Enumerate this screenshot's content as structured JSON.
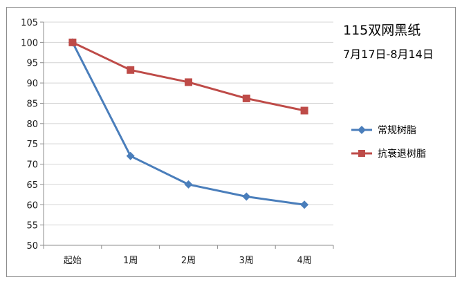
{
  "chart_data": {
    "type": "line",
    "title": "115双网黑纸",
    "subtitle": "7月17日-8月14日",
    "categories": [
      "起始",
      "1周",
      "2周",
      "3周",
      "4周"
    ],
    "ylim": [
      50,
      105
    ],
    "yticks": [
      50,
      55,
      60,
      65,
      70,
      75,
      80,
      85,
      90,
      95,
      100,
      105
    ],
    "grid": true,
    "legend_position": "right",
    "series": [
      {
        "name": "常规树脂",
        "values": [
          100,
          72,
          65,
          62,
          60
        ],
        "color": "#4a7ebb",
        "marker": "diamond"
      },
      {
        "name": "抗衰退树脂",
        "values": [
          100,
          93.2,
          90.2,
          86.2,
          83.2
        ],
        "color": "#be4b48",
        "marker": "square"
      }
    ]
  }
}
